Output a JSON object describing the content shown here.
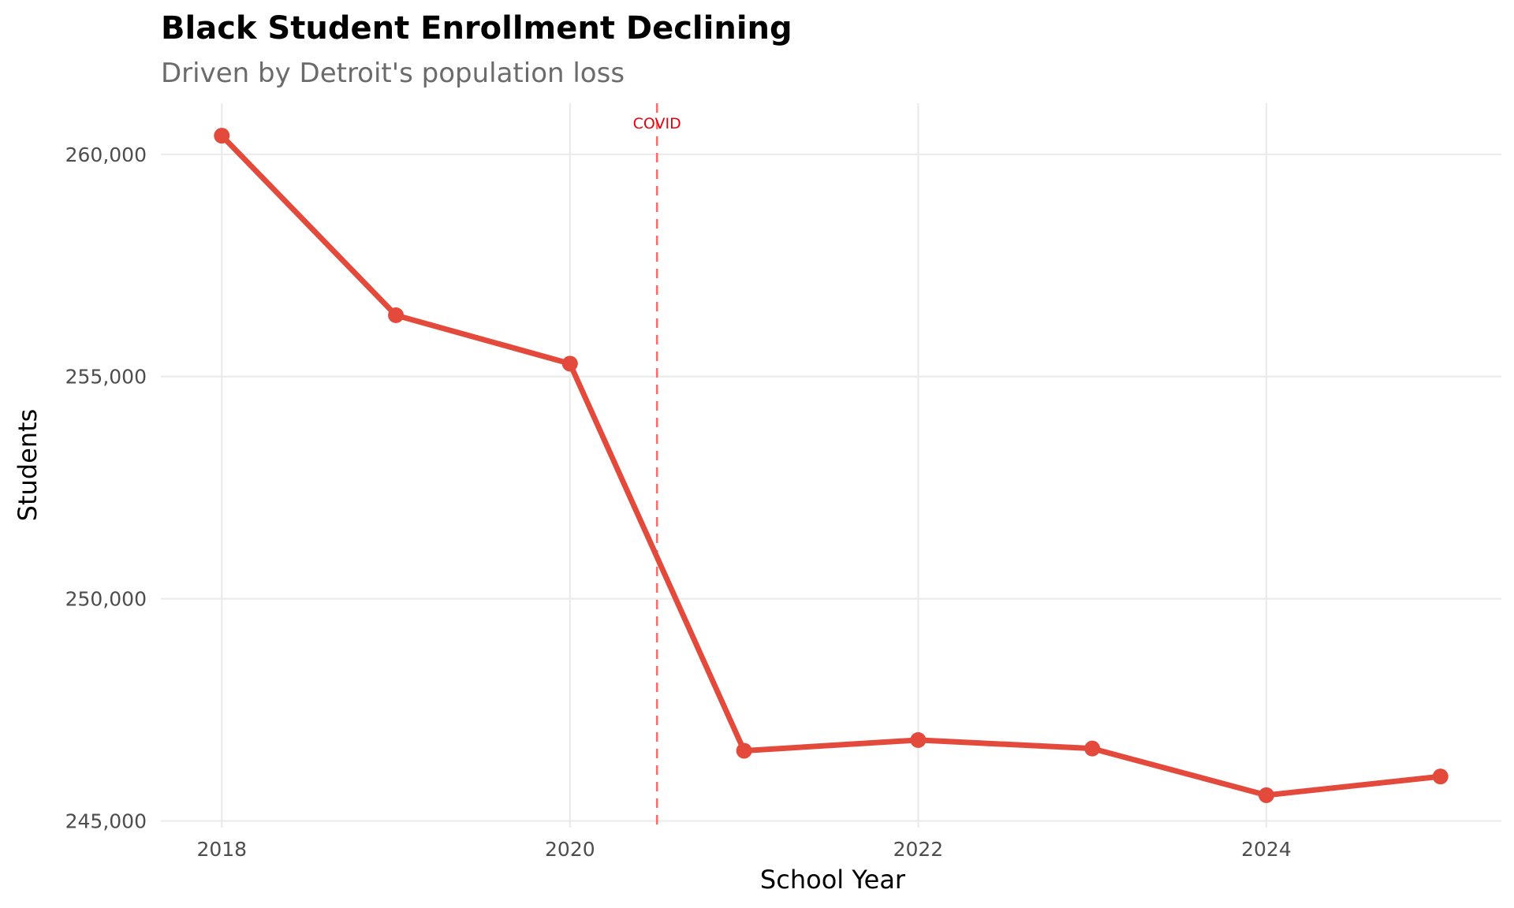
{
  "chart_data": {
    "type": "line",
    "title": "Black Student Enrollment Declining",
    "subtitle": "Driven by Detroit's population loss",
    "xlabel": "School Year",
    "ylabel": "Students",
    "x": [
      2018,
      2019,
      2020,
      2021,
      2022,
      2023,
      2024,
      2025
    ],
    "series": [
      {
        "name": "Black students",
        "values": [
          260420,
          256380,
          255290,
          246580,
          246820,
          246630,
          245580,
          246000
        ]
      }
    ],
    "xlim": [
      2017.65,
      2025.35
    ],
    "ylim": [
      244850,
      261150
    ],
    "x_ticks": [
      2018,
      2020,
      2022,
      2024
    ],
    "x_tick_labels": [
      "2018",
      "2020",
      "2022",
      "2024"
    ],
    "y_ticks": [
      245000,
      250000,
      255000,
      260000
    ],
    "y_tick_labels": [
      "245,000",
      "250,000",
      "255,000",
      "260,000"
    ],
    "grid": true,
    "legend": "none",
    "annotations": [
      {
        "type": "vline",
        "x": 2020.5,
        "label": "COVID",
        "style": "dashed"
      }
    ],
    "colors": {
      "line": "#e34a3b",
      "annotation": "#ff6b6b",
      "annotation_text": "#e8000b"
    }
  }
}
